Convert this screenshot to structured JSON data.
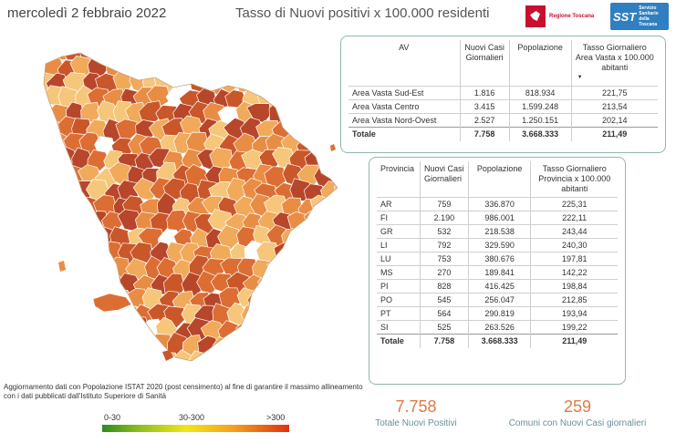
{
  "header": {
    "date": "mercoledì 2 febbraio 2022",
    "title": "Tasso di Nuovi positivi x 100.000 residenti",
    "logo_regione": "Regione Toscana",
    "logo_sst_short": "SST",
    "logo_sst_long": "Servizio Sanitario della Toscana"
  },
  "av_table": {
    "headers": [
      "AV",
      "Nuovi Casi Giornalieri",
      "Popolazione",
      "Tasso Giornaliero Area Vasta x 100.000 abitanti"
    ],
    "rows": [
      {
        "name": "Area Vasta Sud-Est",
        "cases": "1.816",
        "population": "818.934",
        "rate": "221,75"
      },
      {
        "name": "Area Vasta Centro",
        "cases": "3.415",
        "population": "1.599.248",
        "rate": "213,54"
      },
      {
        "name": "Area Vasta Nord-Ovest",
        "cases": "2.527",
        "population": "1.250.151",
        "rate": "202,14"
      }
    ],
    "total": {
      "name": "Totale",
      "cases": "7.758",
      "population": "3.668.333",
      "rate": "211,49"
    }
  },
  "prov_table": {
    "headers": [
      "Provincia",
      "Nuovi Casi Giornalieri",
      "Popolazione",
      "Tasso Giornaliero Provincia x 100.000 abitanti"
    ],
    "rows": [
      {
        "name": "AR",
        "cases": "759",
        "population": "336.870",
        "rate": "225,31"
      },
      {
        "name": "FI",
        "cases": "2.190",
        "population": "986.001",
        "rate": "222,11"
      },
      {
        "name": "GR",
        "cases": "532",
        "population": "218.538",
        "rate": "243,44"
      },
      {
        "name": "LI",
        "cases": "792",
        "population": "329.590",
        "rate": "240,30"
      },
      {
        "name": "LU",
        "cases": "753",
        "population": "380.676",
        "rate": "197,81"
      },
      {
        "name": "MS",
        "cases": "270",
        "population": "189.841",
        "rate": "142,22"
      },
      {
        "name": "PI",
        "cases": "828",
        "population": "416.425",
        "rate": "198,84"
      },
      {
        "name": "PO",
        "cases": "545",
        "population": "256.047",
        "rate": "212,85"
      },
      {
        "name": "PT",
        "cases": "564",
        "population": "290.819",
        "rate": "193,94"
      },
      {
        "name": "SI",
        "cases": "525",
        "population": "263.526",
        "rate": "199,22"
      }
    ],
    "total": {
      "name": "Totale",
      "cases": "7.758",
      "population": "3.668.333",
      "rate": "211,49"
    }
  },
  "note": "Aggiornamento dati con Popolazione ISTAT 2020 (post censimento) al fine di garantire il massimo allineamento con i dati pubblicati dall'Istituto Superiore di Sanità",
  "legend": {
    "low": "0-30",
    "mid": "30-300",
    "high": ">300",
    "colors": [
      "#2e8b1e",
      "#8fbf1f",
      "#f2e51a",
      "#f3a21c",
      "#e03010"
    ]
  },
  "kpis": {
    "total_new_positive_value": "7.758",
    "total_new_positive_label": "Totale Nuovi Positivi",
    "municipalities_value": "259",
    "municipalities_label": "Comuni con Nuovi Casi giornalieri"
  },
  "map": {
    "fill_palette": [
      "#f6c67a",
      "#f1a95a",
      "#e98d45",
      "#dc6e34",
      "#c9572a",
      "#b8462a"
    ],
    "no_data_fill": "#ffffff",
    "border_color": "#ffffff"
  }
}
